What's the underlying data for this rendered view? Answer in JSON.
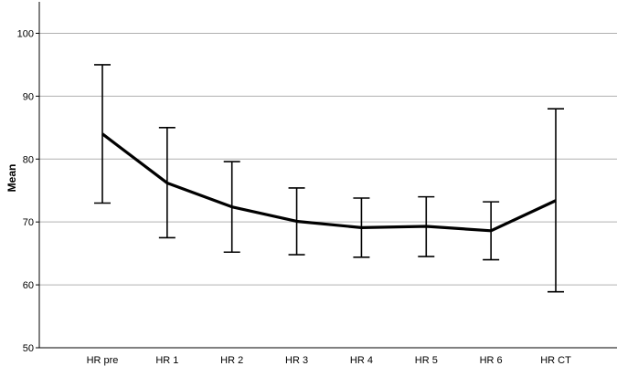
{
  "chart_data": {
    "type": "line",
    "title": "",
    "xlabel": "",
    "ylabel": "Mean",
    "ylim": [
      50,
      105
    ],
    "yticks": [
      50,
      60,
      70,
      80,
      90,
      100
    ],
    "grid": true,
    "categories": [
      "HR pre",
      "HR 1",
      "HR 2",
      "HR 3",
      "HR 4",
      "HR 5",
      "HR 6",
      "HR CT"
    ],
    "series": [
      {
        "values": [
          84.0,
          76.2,
          72.4,
          70.1,
          69.1,
          69.3,
          68.6,
          73.4
        ],
        "error_low": [
          73.0,
          67.5,
          65.2,
          64.8,
          64.4,
          64.5,
          64.0,
          58.9
        ],
        "error_high": [
          95.0,
          85.0,
          79.6,
          75.4,
          73.8,
          74.0,
          73.2,
          88.0
        ]
      }
    ],
    "colors": {
      "line": "#000000",
      "grid": "#b0b0b0",
      "axis": "#000000"
    }
  }
}
